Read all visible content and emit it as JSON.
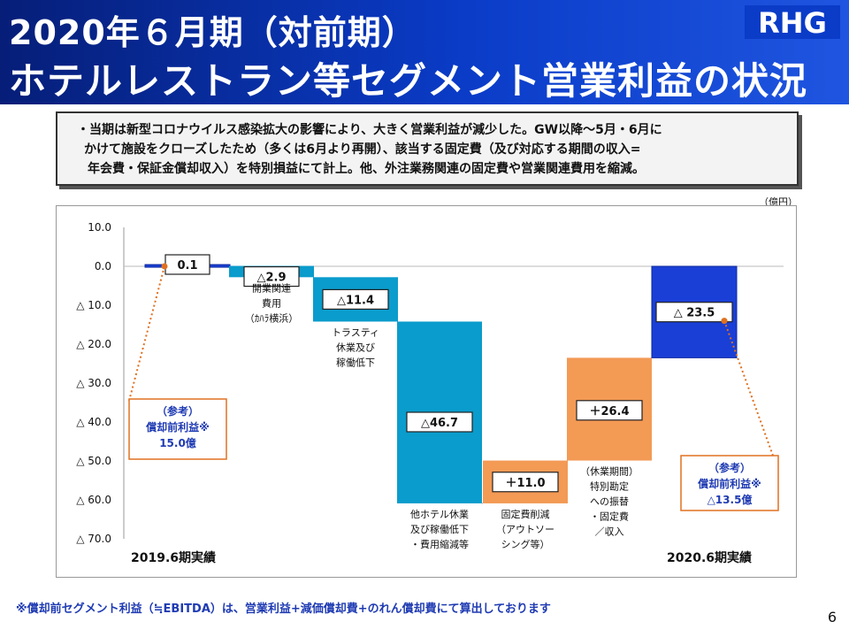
{
  "header": {
    "title_line1": "2020年６月期（対前期）",
    "title_line2": "ホテルレストラン等セグメント営業利益の状況",
    "logo_text": "RHG"
  },
  "note": {
    "line1": "・当期は新型コロナウイルス感染拡大の影響により、大きく営業利益が減少した。GW以降～5月・6月に",
    "line2": "かけて施設をクローズしたため（多くは6月より再開）、該当する固定費（及び対応する期間の収入=",
    "line3": "年会費・保証金償却収入）を特別損益にて計上。他、外注業務関連の固定費や営業関連費用を縮減。"
  },
  "unit_label": "（億円）",
  "chart_data": {
    "type": "bar",
    "subtype": "waterfall",
    "ylim": [
      -70,
      10
    ],
    "yticks": [
      {
        "value": 10,
        "label": "10.0"
      },
      {
        "value": 0,
        "label": "0.0"
      },
      {
        "value": -10,
        "label": "△ 10.0"
      },
      {
        "value": -20,
        "label": "△ 20.0"
      },
      {
        "value": -30,
        "label": "△ 30.0"
      },
      {
        "value": -40,
        "label": "△ 40.0"
      },
      {
        "value": -50,
        "label": "△ 50.0"
      },
      {
        "value": -60,
        "label": "△ 60.0"
      },
      {
        "value": -70,
        "label": "△ 70.0"
      }
    ],
    "bars": [
      {
        "id": "fy2019",
        "kind": "total",
        "from": 0,
        "to": 0.1,
        "label": "0.1",
        "color": "#1a3fd6",
        "caption": []
      },
      {
        "id": "opening",
        "kind": "delta",
        "from": 0.1,
        "to": -2.8,
        "label": "△2.9",
        "color": "#0a9ccc",
        "caption": [
          "開業関連",
          "費用",
          "（ｶﾊﾗ横浜）"
        ]
      },
      {
        "id": "trusty",
        "kind": "delta",
        "from": -2.8,
        "to": -14.2,
        "label": "△11.4",
        "color": "#0a9ccc",
        "caption": [
          "トラスティ",
          "休業及び",
          "稼働低下"
        ]
      },
      {
        "id": "other_hotels",
        "kind": "delta",
        "from": -14.2,
        "to": -60.9,
        "label": "△46.7",
        "color": "#0a9ccc",
        "caption": [
          "他ホテル休業",
          "及び稼働低下",
          "・費用縮減等"
        ]
      },
      {
        "id": "fixed_cost",
        "kind": "delta",
        "from": -60.9,
        "to": -49.9,
        "label": "＋11.0",
        "color": "#f39a55",
        "caption": [
          "固定費削減",
          "（アウトソー",
          "シング等）"
        ]
      },
      {
        "id": "special",
        "kind": "delta",
        "from": -49.9,
        "to": -23.5,
        "label": "＋26.4",
        "color": "#f39a55",
        "caption": [
          "（休業期間）",
          "特別勘定",
          "への振替",
          "・固定費",
          "／収入"
        ]
      },
      {
        "id": "fy2020",
        "kind": "total",
        "from": 0,
        "to": -23.5,
        "label": "△ 23.5",
        "color": "#1a3fd6",
        "caption": []
      }
    ],
    "period_labels": {
      "left": "2019.6期実績",
      "right": "2020.6期実績"
    },
    "callouts": [
      {
        "lines": [
          "（参考）",
          "償却前利益※",
          "15.0億"
        ]
      },
      {
        "lines": [
          "（参考）",
          "償却前利益※",
          "△13.5億"
        ]
      }
    ]
  },
  "footnote": "※償却前セグメント利益（≒EBITDA）は、営業利益+減価償却費+のれん償却費にて算出しております",
  "page_number": "6"
}
